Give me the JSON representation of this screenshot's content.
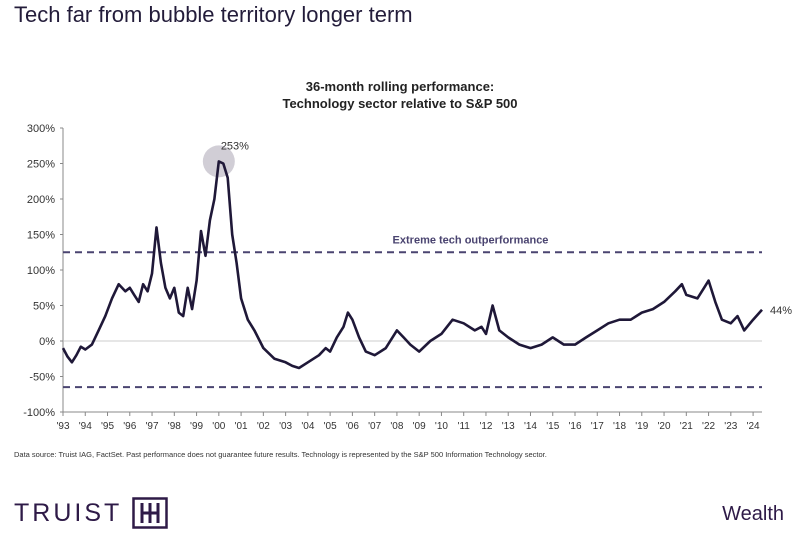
{
  "headline": "Tech far from bubble territory longer term",
  "brand": {
    "logo_text": "TRUIST",
    "division": "Wealth",
    "accent": "#2e1a47"
  },
  "footnote": "Data source: Truist IAG, FactSet. Past performance does not guarantee future results. Technology is represented by the S&P 500 Information Technology sector.",
  "chart_data": {
    "type": "line",
    "title": "36-month rolling performance:",
    "subtitle": "Technology sector relative to S&P 500",
    "xlabel": "",
    "ylabel": "",
    "xlim": [
      1993,
      2024.4
    ],
    "ylim": [
      -100,
      300
    ],
    "yticks": [
      -100,
      -50,
      0,
      50,
      100,
      150,
      200,
      250,
      300
    ],
    "ytick_labels": [
      "-100%",
      "-50%",
      "0%",
      "50%",
      "100%",
      "150%",
      "200%",
      "250%",
      "300%"
    ],
    "xticks": [
      1993,
      1994,
      1995,
      1996,
      1997,
      1998,
      1999,
      2000,
      2001,
      2002,
      2003,
      2004,
      2005,
      2006,
      2007,
      2008,
      2009,
      2010,
      2011,
      2012,
      2013,
      2014,
      2015,
      2016,
      2017,
      2018,
      2019,
      2020,
      2021,
      2022,
      2023,
      2024
    ],
    "xtick_labels": [
      "'93",
      "'94",
      "'95",
      "'96",
      "'97",
      "'98",
      "'99",
      "'00",
      "'01",
      "'02",
      "'03",
      "'04",
      "'05",
      "'06",
      "'07",
      "'08",
      "'09",
      "'10",
      "'11",
      "'12",
      "'13",
      "'14",
      "'15",
      "'16",
      "'17",
      "'18",
      "'19",
      "'20",
      "'21",
      "'22",
      "'23",
      "'24"
    ],
    "line_color": "#1f1838",
    "threshold_color": "#4a4470",
    "thresholds": [
      {
        "value": 125,
        "label": "Extreme tech outperformance"
      },
      {
        "value": -65,
        "label": ""
      }
    ],
    "annotations": [
      {
        "x": 2000.0,
        "y": 253,
        "label": "253%",
        "highlight": true
      },
      {
        "x": 2024.4,
        "y": 44,
        "label": "44%",
        "highlight": false
      }
    ],
    "series": [
      {
        "name": "Technology sector relative to S&P 500 (36-month rolling)",
        "x": [
          1993.0,
          1993.2,
          1993.4,
          1993.6,
          1993.8,
          1994.0,
          1994.3,
          1994.6,
          1994.9,
          1995.2,
          1995.5,
          1995.8,
          1996.0,
          1996.2,
          1996.4,
          1996.6,
          1996.8,
          1997.0,
          1997.2,
          1997.4,
          1997.6,
          1997.8,
          1998.0,
          1998.2,
          1998.4,
          1998.6,
          1998.8,
          1999.0,
          1999.2,
          1999.4,
          1999.6,
          1999.8,
          2000.0,
          2000.2,
          2000.4,
          2000.6,
          2000.8,
          2001.0,
          2001.3,
          2001.6,
          2002.0,
          2002.5,
          2003.0,
          2003.3,
          2003.6,
          2004.0,
          2004.5,
          2004.8,
          2005.0,
          2005.3,
          2005.6,
          2005.8,
          2006.0,
          2006.3,
          2006.6,
          2007.0,
          2007.5,
          2008.0,
          2008.3,
          2008.6,
          2009.0,
          2009.5,
          2010.0,
          2010.5,
          2011.0,
          2011.5,
          2011.8,
          2012.0,
          2012.3,
          2012.6,
          2013.0,
          2013.5,
          2014.0,
          2014.5,
          2015.0,
          2015.5,
          2016.0,
          2016.5,
          2017.0,
          2017.5,
          2018.0,
          2018.5,
          2019.0,
          2019.5,
          2020.0,
          2020.5,
          2020.8,
          2021.0,
          2021.5,
          2021.8,
          2022.0,
          2022.3,
          2022.6,
          2023.0,
          2023.3,
          2023.6,
          2024.0,
          2024.4
        ],
        "values": [
          -10,
          -22,
          -30,
          -20,
          -8,
          -12,
          -5,
          15,
          35,
          60,
          80,
          70,
          75,
          65,
          55,
          80,
          70,
          95,
          160,
          110,
          75,
          60,
          75,
          40,
          35,
          75,
          45,
          85,
          155,
          120,
          170,
          200,
          253,
          250,
          230,
          150,
          110,
          60,
          30,
          15,
          -10,
          -25,
          -30,
          -35,
          -38,
          -30,
          -20,
          -10,
          -15,
          5,
          20,
          40,
          30,
          5,
          -15,
          -20,
          -10,
          15,
          5,
          -5,
          -15,
          0,
          10,
          30,
          25,
          15,
          20,
          10,
          50,
          15,
          5,
          -5,
          -10,
          -5,
          5,
          -5,
          -5,
          5,
          15,
          25,
          30,
          30,
          40,
          45,
          55,
          70,
          80,
          65,
          60,
          75,
          85,
          55,
          30,
          25,
          35,
          15,
          30,
          44
        ]
      }
    ]
  }
}
